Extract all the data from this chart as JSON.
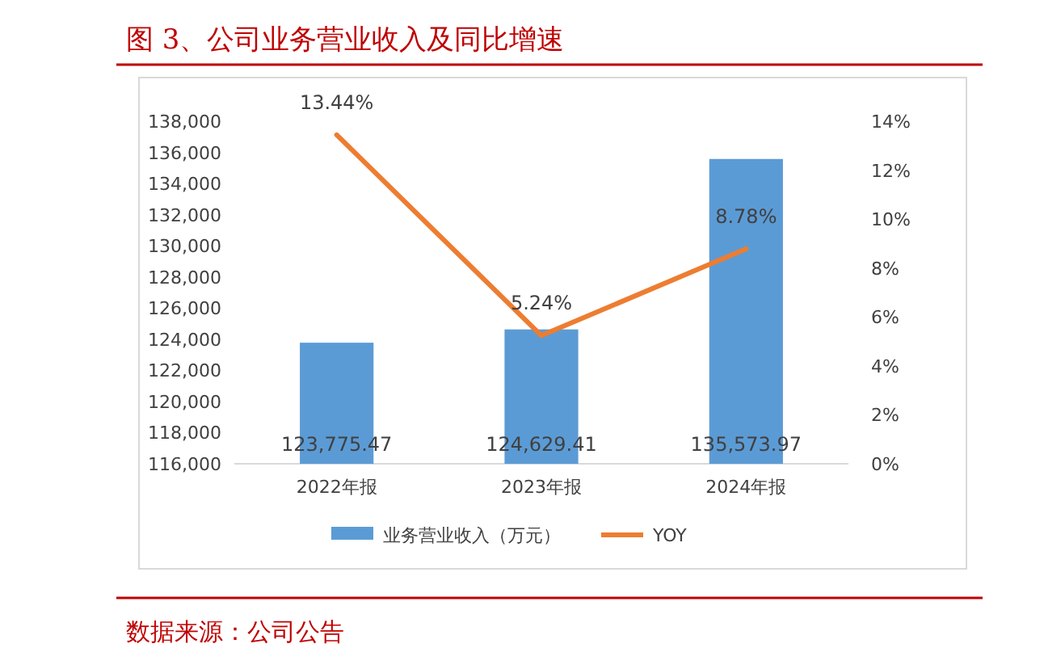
{
  "chart_data": {
    "type": "bar",
    "title": "图 3、公司业务营业收入及同比增速",
    "categories": [
      "2022年报",
      "2023年报",
      "2024年报"
    ],
    "series": [
      {
        "name": "业务营业收入（万元）",
        "color": "#5b9bd5",
        "values": [
          123775.47,
          124629.41,
          135573.97
        ],
        "value_labels": [
          "123,775.47",
          "124,629.41",
          "135,573.97"
        ]
      },
      {
        "name": "YOY",
        "type": "line",
        "axis": "y2",
        "color": "#ed7d31",
        "values": [
          13.44,
          5.24,
          8.78
        ],
        "value_labels": [
          "13.44%",
          "5.24%",
          "8.78%"
        ]
      }
    ],
    "ylim": [
      116000,
      138000
    ],
    "yticks": [
      {
        "value": 116000,
        "label": "116,000"
      },
      {
        "value": 118000,
        "label": "118,000"
      },
      {
        "value": 120000,
        "label": "120,000"
      },
      {
        "value": 122000,
        "label": "122,000"
      },
      {
        "value": 124000,
        "label": "124,000"
      },
      {
        "value": 126000,
        "label": "126,000"
      },
      {
        "value": 128000,
        "label": "128,000"
      },
      {
        "value": 130000,
        "label": "130,000"
      },
      {
        "value": 132000,
        "label": "132,000"
      },
      {
        "value": 134000,
        "label": "134,000"
      },
      {
        "value": 136000,
        "label": "136,000"
      },
      {
        "value": 138000,
        "label": "138,000"
      }
    ],
    "y2lim": [
      0,
      14
    ],
    "y2ticks": [
      {
        "value": 0,
        "label": "0%"
      },
      {
        "value": 2,
        "label": "2%"
      },
      {
        "value": 4,
        "label": "4%"
      },
      {
        "value": 6,
        "label": "6%"
      },
      {
        "value": 8,
        "label": "8%"
      },
      {
        "value": 10,
        "label": "10%"
      },
      {
        "value": 12,
        "label": "12%"
      },
      {
        "value": 14,
        "label": "14%"
      }
    ],
    "legend": "bottom",
    "grid": false,
    "annotations": [
      "数据来源：公司公告"
    ]
  }
}
